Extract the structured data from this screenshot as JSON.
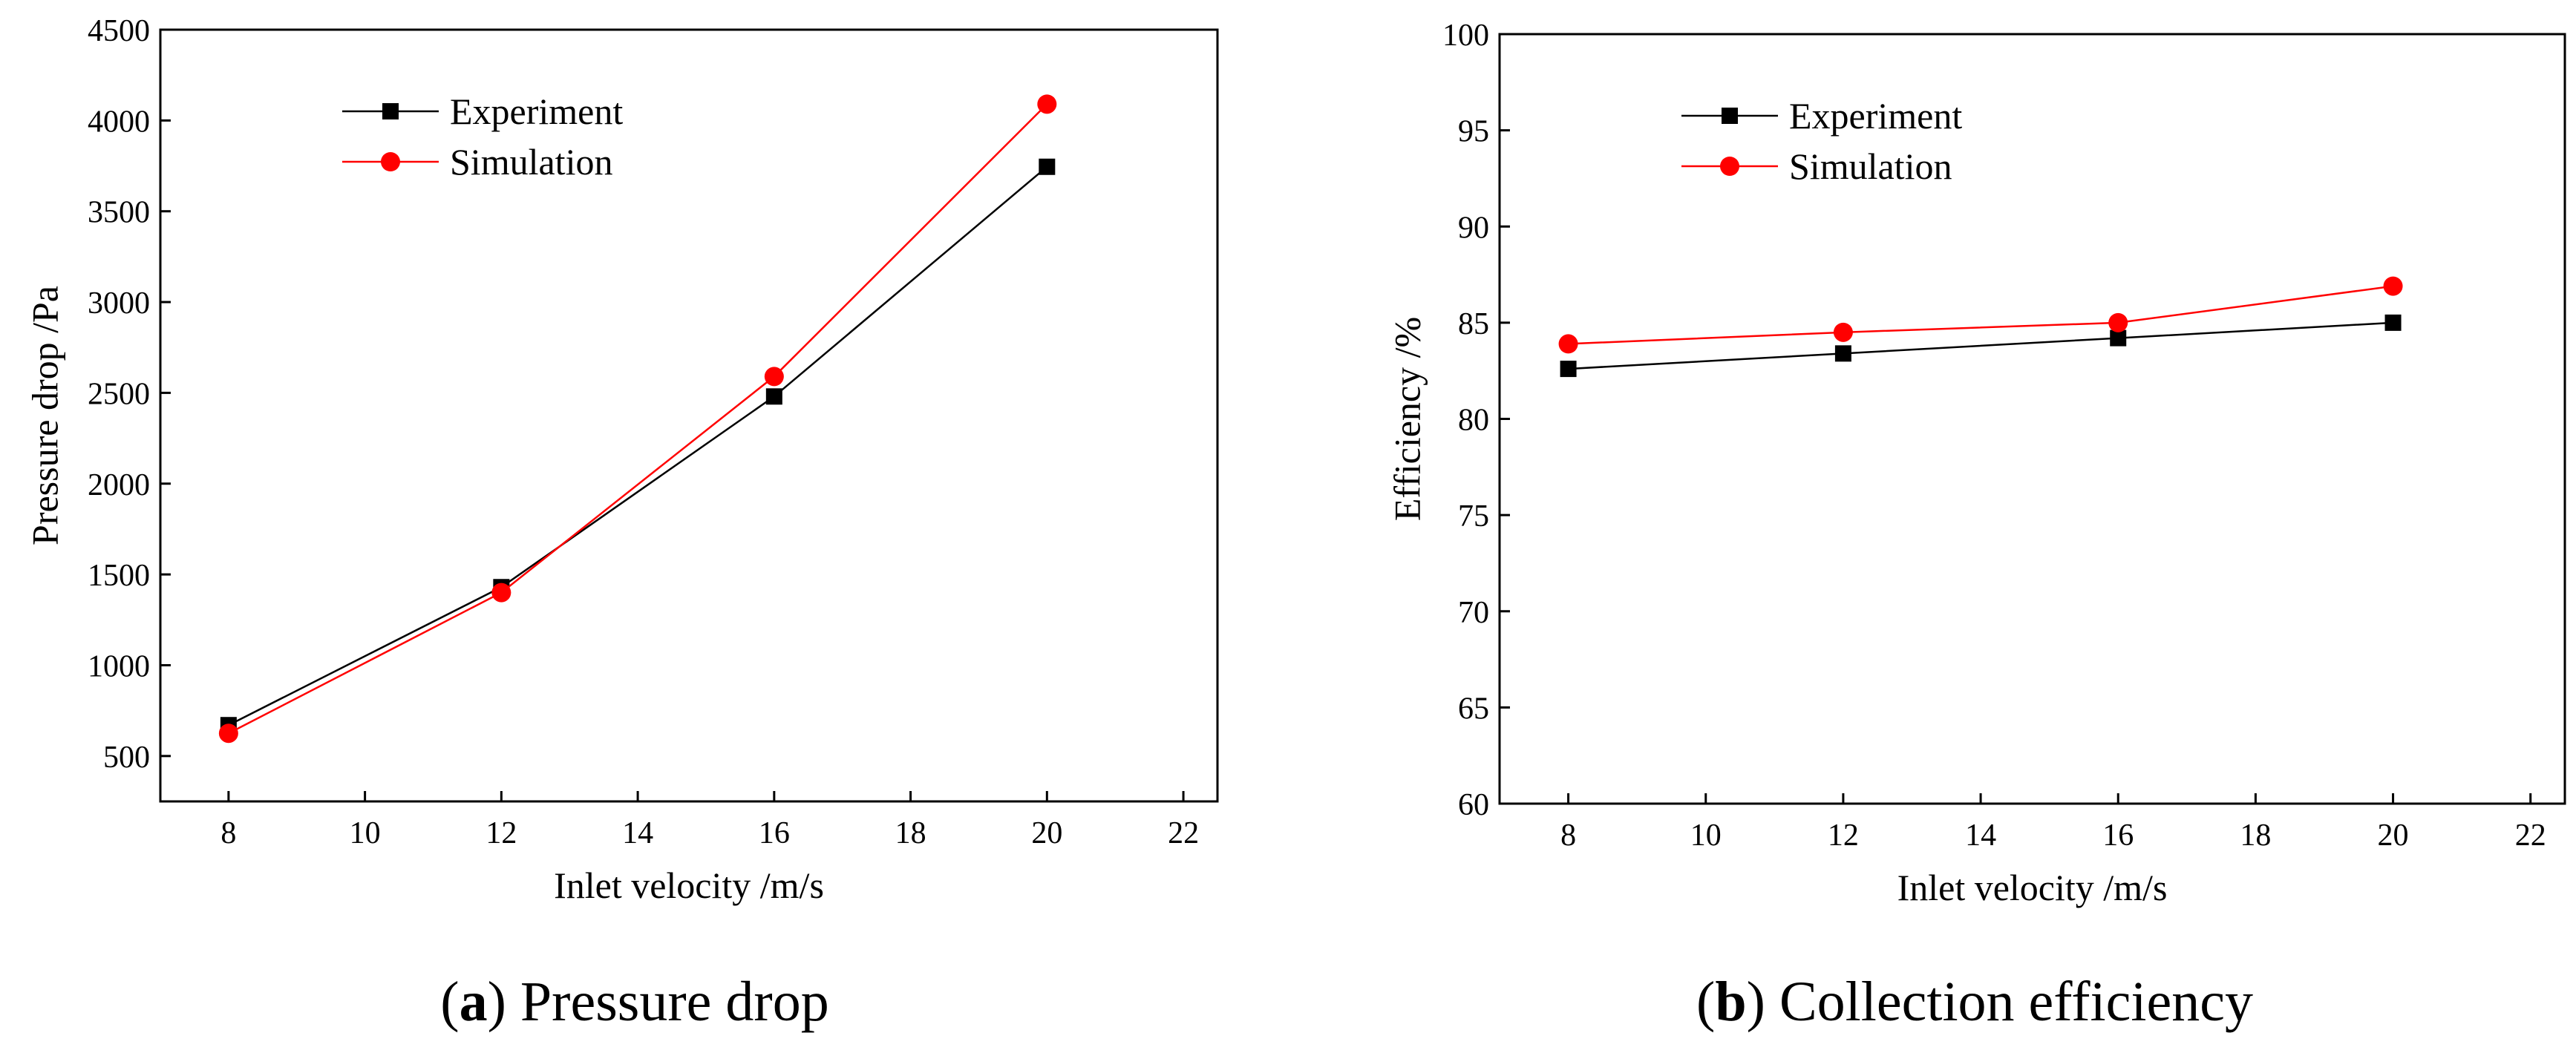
{
  "chart_data": [
    {
      "type": "line",
      "caption_letter": "a",
      "caption_text": "Pressure drop",
      "xlabel": "Inlet velocity /m/s",
      "ylabel": "Pressure drop /Pa",
      "xlim": [
        7,
        22.5
      ],
      "ylim": [
        250,
        4500
      ],
      "xticks": [
        8,
        10,
        12,
        14,
        16,
        18,
        20,
        22
      ],
      "yticks": [
        500,
        1000,
        1500,
        2000,
        2500,
        3000,
        3500,
        4000,
        4500
      ],
      "grid": false,
      "legend_position": "top-left",
      "series": [
        {
          "name": "Experiment",
          "marker": "square",
          "color": "#000000",
          "x": [
            8,
            12,
            16,
            20
          ],
          "y": [
            670,
            1430,
            2480,
            3745
          ]
        },
        {
          "name": "Simulation",
          "marker": "circle",
          "color": "#ff0000",
          "x": [
            8,
            12,
            16,
            20
          ],
          "y": [
            625,
            1400,
            2590,
            4090
          ]
        }
      ]
    },
    {
      "type": "line",
      "caption_letter": "b",
      "caption_text": "Collection efficiency",
      "xlabel": "Inlet velocity /m/s",
      "ylabel": "Efficiency /%",
      "xlim": [
        7,
        22.5
      ],
      "ylim": [
        60,
        100
      ],
      "xticks": [
        8,
        10,
        12,
        14,
        16,
        18,
        20,
        22
      ],
      "yticks": [
        60,
        65,
        70,
        75,
        80,
        85,
        90,
        95,
        100
      ],
      "grid": false,
      "legend_position": "top-left",
      "series": [
        {
          "name": "Experiment",
          "marker": "square",
          "color": "#000000",
          "x": [
            8,
            12,
            16,
            20
          ],
          "y": [
            82.6,
            83.4,
            84.2,
            85.0
          ]
        },
        {
          "name": "Simulation",
          "marker": "circle",
          "color": "#ff0000",
          "x": [
            8,
            12,
            16,
            20
          ],
          "y": [
            83.9,
            84.5,
            85.0,
            86.9
          ]
        }
      ]
    }
  ]
}
